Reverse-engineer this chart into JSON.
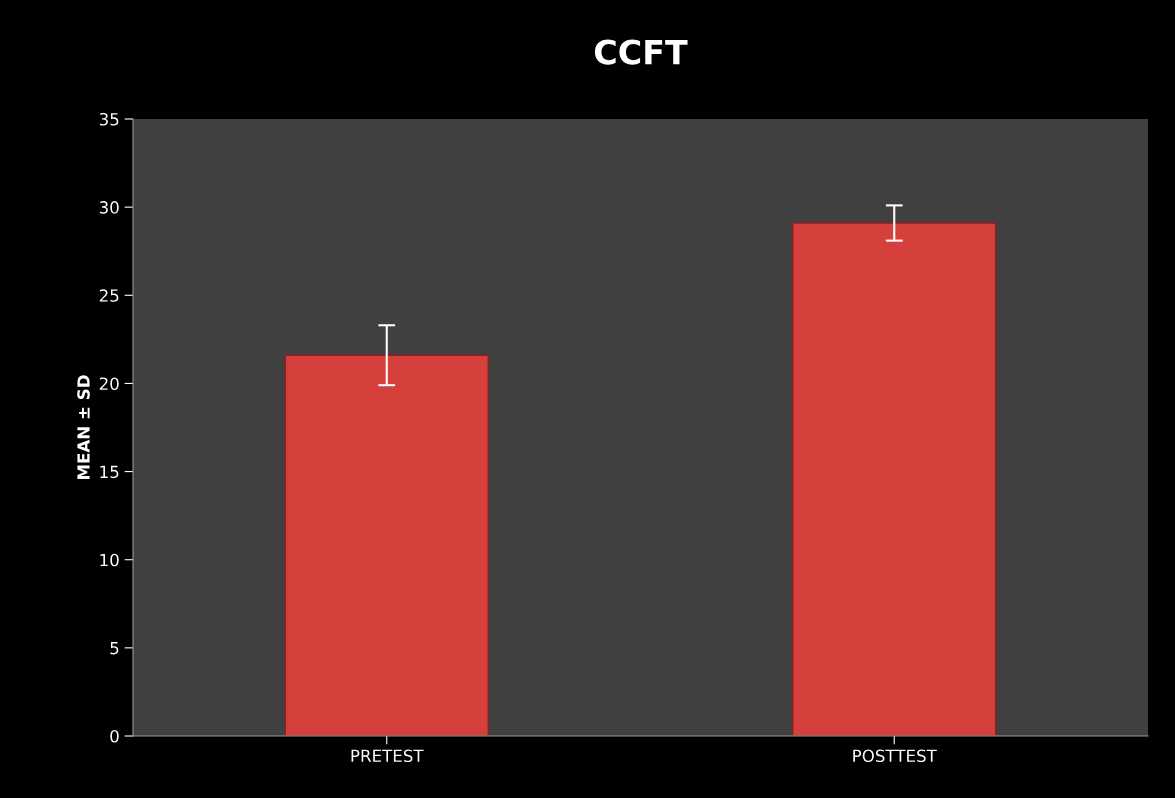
{
  "chart_data": {
    "type": "bar",
    "title": "CCFT",
    "ylabel": "MEAN ± SD",
    "categories": [
      "PRETEST",
      "POSTTEST"
    ],
    "values": [
      21.6,
      29.1
    ],
    "errors": [
      1.7,
      1.0
    ],
    "color": "#d6403c",
    "ylim": [
      0,
      35
    ],
    "yticks": [
      0,
      5,
      10,
      15,
      20,
      25,
      30,
      35
    ],
    "grid": false
  }
}
